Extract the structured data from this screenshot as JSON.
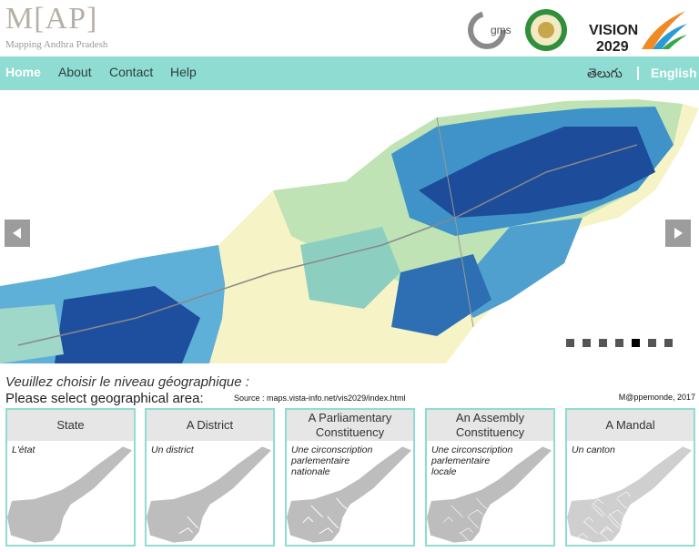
{
  "header": {
    "logo": "M[AP]",
    "subtitle": "Mapping Andhra Pradesh",
    "partner": "gms",
    "vision": "VISION",
    "vision_year": "2029"
  },
  "nav": {
    "items": [
      "Home",
      "About",
      "Contact",
      "Help"
    ],
    "languages": [
      "తెలుగు",
      "English"
    ]
  },
  "selection": {
    "prompt_fr": "Veuillez choisir le niveau géographique :",
    "prompt_en": "Please select geographical area:",
    "source": "Source : maps.vista-info.net/vis2029/index.html",
    "credit": "M@ppemonde, 2017"
  },
  "cards": [
    {
      "title": "State",
      "description": "L'état"
    },
    {
      "title": "A District",
      "description": "Un district"
    },
    {
      "title": "A Parliamentary Constituency",
      "description": "Une circonscription parlementaire nationale"
    },
    {
      "title": "An Assembly Constituency",
      "description": "Une circonscription parlementaire locale"
    },
    {
      "title": "A Mandal",
      "description": "Un canton"
    }
  ]
}
